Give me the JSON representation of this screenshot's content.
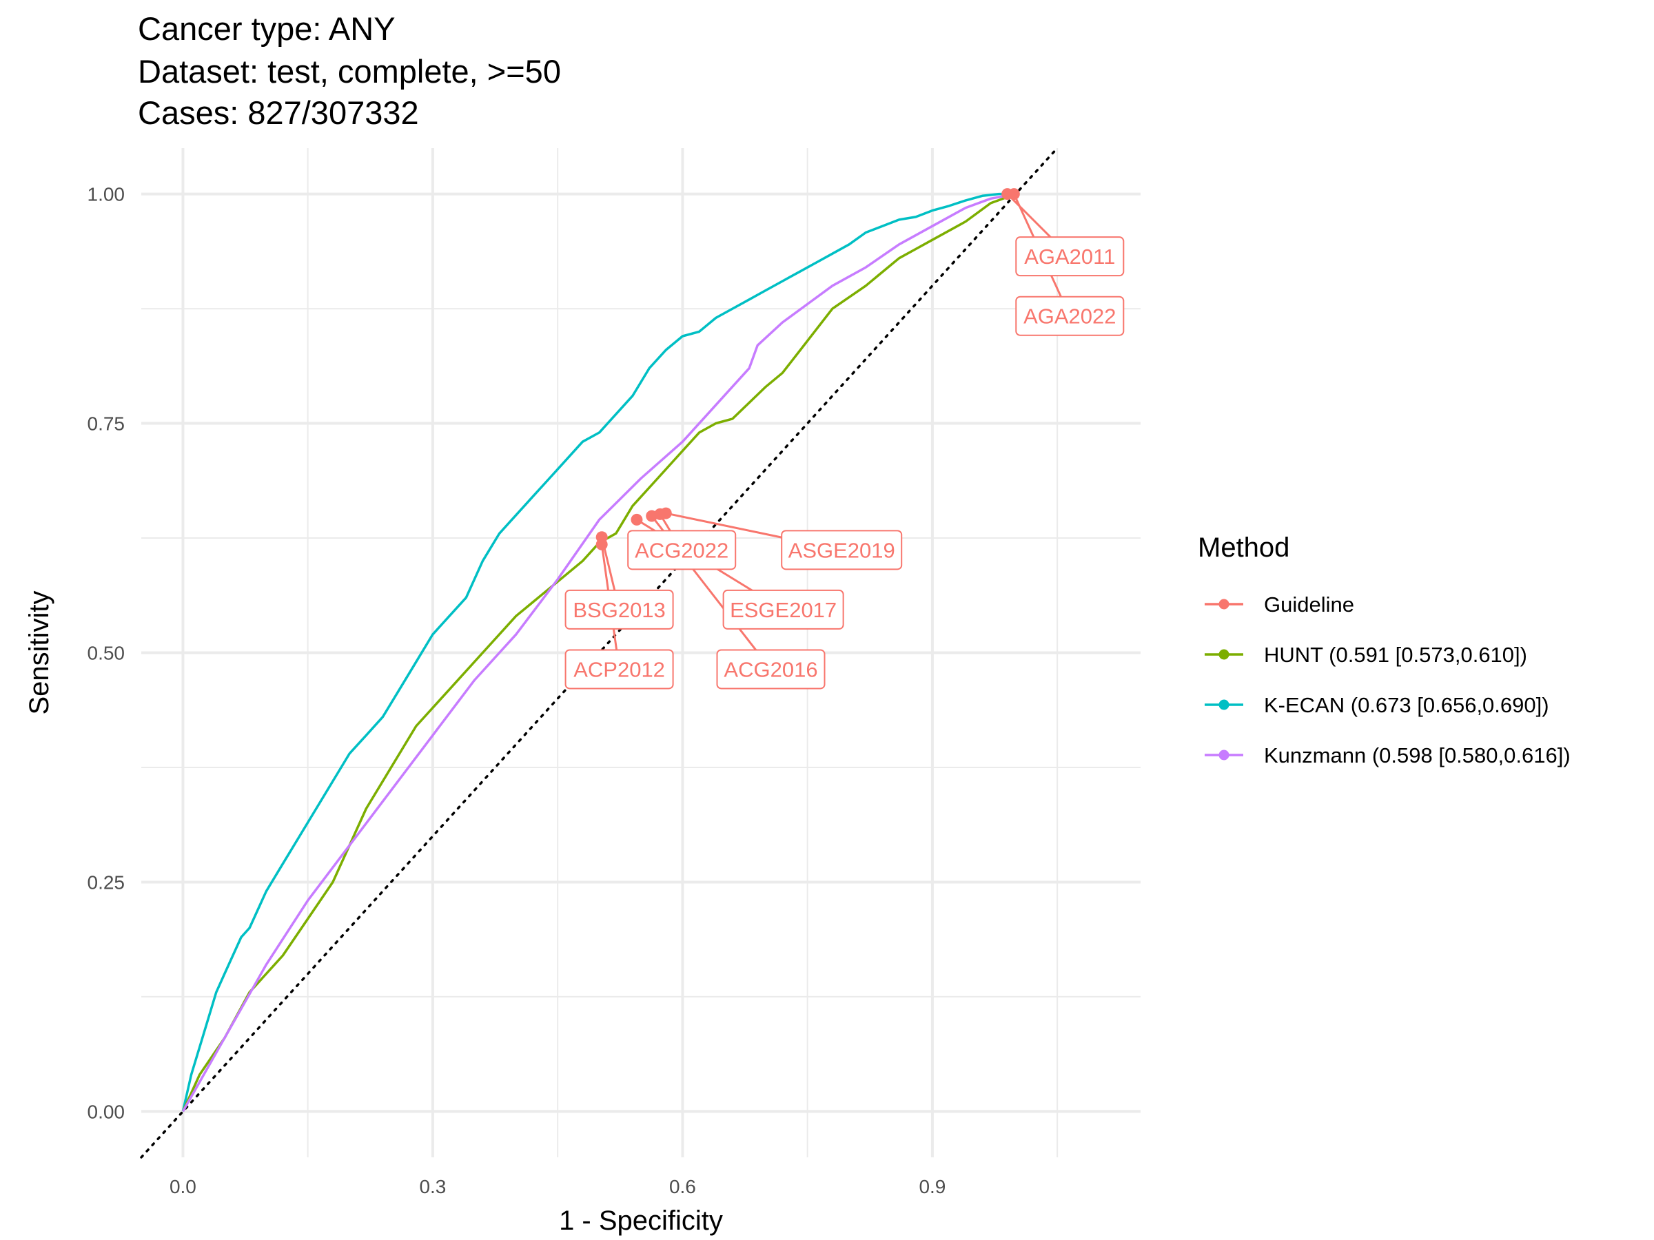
{
  "chart_data": {
    "type": "line",
    "title_lines": [
      "Cancer type: ANY",
      "Dataset: test, complete, >=50",
      "Cases: 827/307332"
    ],
    "xlabel": "1 - Specificity",
    "ylabel": "Sensitivity",
    "xlim": [
      -0.05,
      1.15
    ],
    "ylim": [
      -0.05,
      1.05
    ],
    "x_ticks": [
      0.0,
      0.3,
      0.6,
      0.9
    ],
    "x_tick_labels": [
      "0.0",
      "0.3",
      "0.6",
      "0.9"
    ],
    "y_ticks": [
      0.0,
      0.25,
      0.5,
      0.75,
      1.0
    ],
    "y_tick_labels": [
      "0.00",
      "0.25",
      "0.50",
      "0.75",
      "1.00"
    ],
    "grid": true,
    "diagonal_reference": true,
    "legend": {
      "title": "Method",
      "placement": "right",
      "entries": [
        {
          "label": "Guideline",
          "color": "#F8766D"
        },
        {
          "label": "HUNT (0.591 [0.573,0.610])",
          "color": "#7CAE00"
        },
        {
          "label": "K-ECAN (0.673 [0.656,0.690])",
          "color": "#00BFC4"
        },
        {
          "label": "Kunzmann (0.598 [0.580,0.616])",
          "color": "#C77CFF"
        }
      ]
    },
    "series": [
      {
        "name": "K-ECAN (0.673 [0.656,0.690])",
        "color": "#00BFC4",
        "x": [
          0,
          0.01,
          0.02,
          0.03,
          0.04,
          0.05,
          0.06,
          0.07,
          0.08,
          0.1,
          0.12,
          0.14,
          0.16,
          0.18,
          0.2,
          0.22,
          0.24,
          0.26,
          0.28,
          0.3,
          0.32,
          0.34,
          0.36,
          0.38,
          0.4,
          0.42,
          0.44,
          0.46,
          0.48,
          0.5,
          0.52,
          0.54,
          0.56,
          0.58,
          0.6,
          0.62,
          0.64,
          0.66,
          0.68,
          0.7,
          0.72,
          0.74,
          0.76,
          0.78,
          0.8,
          0.82,
          0.84,
          0.86,
          0.88,
          0.9,
          0.92,
          0.94,
          0.96,
          0.98,
          1.0
        ],
        "y": [
          0,
          0.04,
          0.07,
          0.1,
          0.13,
          0.15,
          0.17,
          0.19,
          0.2,
          0.24,
          0.27,
          0.3,
          0.33,
          0.36,
          0.39,
          0.41,
          0.43,
          0.46,
          0.49,
          0.52,
          0.54,
          0.56,
          0.6,
          0.63,
          0.65,
          0.67,
          0.69,
          0.71,
          0.73,
          0.74,
          0.76,
          0.78,
          0.81,
          0.83,
          0.845,
          0.85,
          0.865,
          0.875,
          0.885,
          0.895,
          0.905,
          0.915,
          0.925,
          0.935,
          0.945,
          0.958,
          0.965,
          0.972,
          0.975,
          0.982,
          0.987,
          0.993,
          0.998,
          1.0,
          1.0
        ]
      },
      {
        "name": "HUNT (0.591 [0.573,0.610])",
        "color": "#7CAE00",
        "x": [
          0,
          0.02,
          0.05,
          0.08,
          0.12,
          0.18,
          0.22,
          0.28,
          0.32,
          0.36,
          0.4,
          0.44,
          0.48,
          0.5,
          0.52,
          0.54,
          0.57,
          0.6,
          0.62,
          0.64,
          0.66,
          0.7,
          0.72,
          0.75,
          0.78,
          0.82,
          0.86,
          0.88,
          0.9,
          0.94,
          0.97,
          1.0
        ],
        "y": [
          0,
          0.04,
          0.08,
          0.13,
          0.17,
          0.25,
          0.33,
          0.42,
          0.46,
          0.5,
          0.54,
          0.57,
          0.6,
          0.62,
          0.63,
          0.66,
          0.69,
          0.72,
          0.74,
          0.75,
          0.755,
          0.79,
          0.805,
          0.84,
          0.875,
          0.9,
          0.93,
          0.94,
          0.95,
          0.97,
          0.99,
          1.0
        ]
      },
      {
        "name": "Kunzmann (0.598 [0.580,0.616])",
        "color": "#C77CFF",
        "x": [
          0,
          0.05,
          0.1,
          0.15,
          0.2,
          0.25,
          0.3,
          0.35,
          0.4,
          0.45,
          0.5,
          0.55,
          0.6,
          0.65,
          0.68,
          0.69,
          0.72,
          0.75,
          0.78,
          0.82,
          0.86,
          0.9,
          0.94,
          0.97,
          1.0
        ],
        "y": [
          0,
          0.08,
          0.16,
          0.23,
          0.29,
          0.35,
          0.41,
          0.47,
          0.52,
          0.58,
          0.645,
          0.69,
          0.73,
          0.78,
          0.81,
          0.835,
          0.86,
          0.88,
          0.9,
          0.92,
          0.945,
          0.965,
          0.985,
          0.995,
          1.0
        ]
      }
    ],
    "guideline_points": [
      {
        "label": "AGA2011",
        "x": 0.99,
        "y": 1.0,
        "label_x": 1.065,
        "label_y": 0.932
      },
      {
        "label": "AGA2022",
        "x": 0.998,
        "y": 1.0,
        "label_x": 1.065,
        "label_y": 0.867
      },
      {
        "label": "ACG2022",
        "x": 0.573,
        "y": 0.651,
        "label_x": 0.599,
        "label_y": 0.612
      },
      {
        "label": "ASGE2019",
        "x": 0.58,
        "y": 0.652,
        "label_x": 0.791,
        "label_y": 0.612
      },
      {
        "label": "BSG2013",
        "x": 0.503,
        "y": 0.626,
        "label_x": 0.524,
        "label_y": 0.547
      },
      {
        "label": "ESGE2017",
        "x": 0.545,
        "y": 0.645,
        "label_x": 0.721,
        "label_y": 0.547
      },
      {
        "label": "ACP2012",
        "x": 0.503,
        "y": 0.618,
        "label_x": 0.524,
        "label_y": 0.482
      },
      {
        "label": "ACG2016",
        "x": 0.563,
        "y": 0.649,
        "label_x": 0.706,
        "label_y": 0.482
      }
    ]
  }
}
